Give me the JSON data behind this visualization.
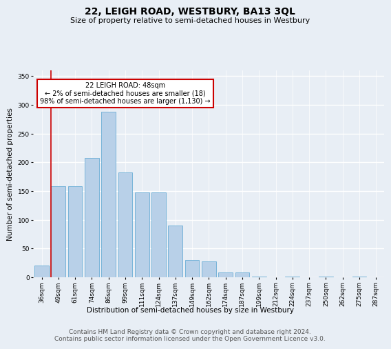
{
  "title": "22, LEIGH ROAD, WESTBURY, BA13 3QL",
  "subtitle": "Size of property relative to semi-detached houses in Westbury",
  "xlabel": "Distribution of semi-detached houses by size in Westbury",
  "ylabel": "Number of semi-detached properties",
  "categories": [
    "36sqm",
    "49sqm",
    "61sqm",
    "74sqm",
    "86sqm",
    "99sqm",
    "111sqm",
    "124sqm",
    "137sqm",
    "149sqm",
    "162sqm",
    "174sqm",
    "187sqm",
    "199sqm",
    "212sqm",
    "224sqm",
    "237sqm",
    "250sqm",
    "262sqm",
    "275sqm",
    "287sqm"
  ],
  "values": [
    20,
    158,
    158,
    208,
    288,
    183,
    148,
    148,
    90,
    30,
    28,
    8,
    8,
    1,
    0,
    1,
    0,
    1,
    0,
    1,
    0
  ],
  "bar_color": "#b8d0e8",
  "bar_edge_color": "#6aaed6",
  "annotation_text": "22 LEIGH ROAD: 48sqm\n← 2% of semi-detached houses are smaller (18)\n98% of semi-detached houses are larger (1,130) →",
  "annotation_box_color": "#ffffff",
  "annotation_box_edge_color": "#cc0000",
  "vline_x": 0.575,
  "vline_color": "#cc0000",
  "ylim": [
    0,
    360
  ],
  "yticks": [
    0,
    50,
    100,
    150,
    200,
    250,
    300,
    350
  ],
  "footer_line1": "Contains HM Land Registry data © Crown copyright and database right 2024.",
  "footer_line2": "Contains public sector information licensed under the Open Government Licence v3.0.",
  "background_color": "#e8eef5",
  "plot_bg_color": "#e8eef5",
  "grid_color": "#ffffff",
  "title_fontsize": 10,
  "subtitle_fontsize": 8,
  "axis_label_fontsize": 7.5,
  "tick_fontsize": 6.5,
  "footer_fontsize": 6.5
}
